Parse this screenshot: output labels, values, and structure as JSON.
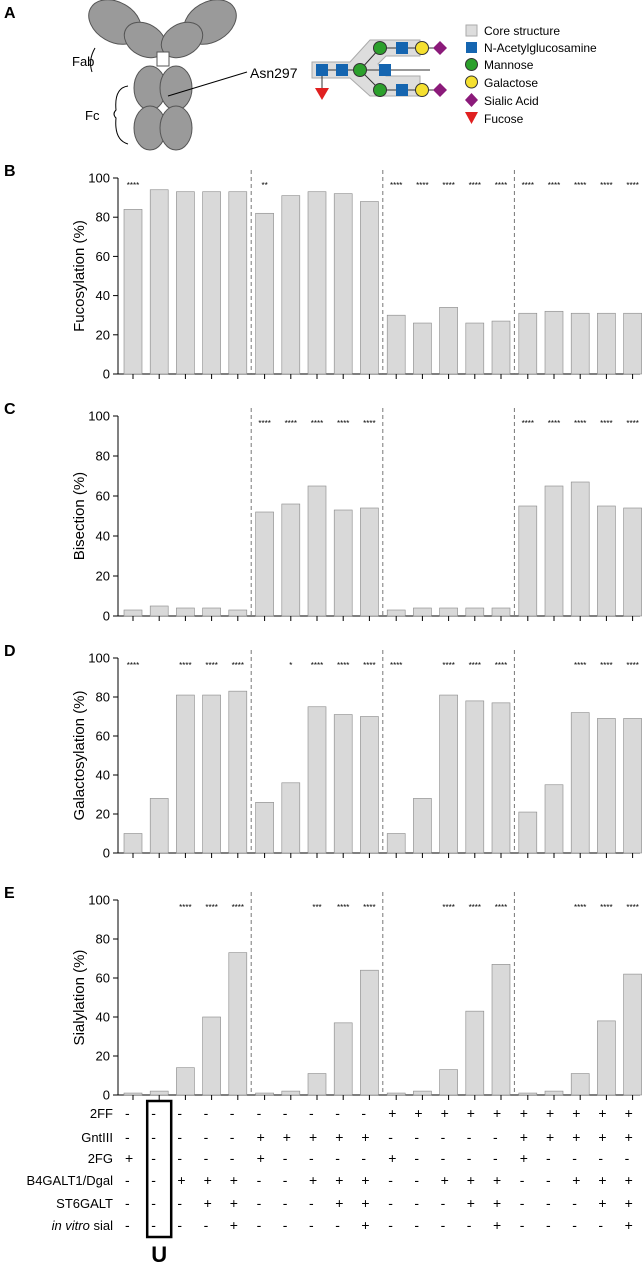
{
  "diagram": {
    "label": "A",
    "fab": "Fab",
    "fc": "Fc",
    "site": "Asn297",
    "legend": [
      "Core structure",
      "N-Acetylglucosamine",
      "Mannose",
      "Galactose",
      "Sialic Acid",
      "Fucose"
    ]
  },
  "chart_data": [
    {
      "type": "bar",
      "label": "B",
      "ylabel": "Fucosylation (%)",
      "color": "#d9d9d9",
      "ylim": [
        0,
        100
      ],
      "yticks": [
        0,
        20,
        40,
        60,
        80,
        100
      ],
      "values": [
        84,
        94,
        93,
        93,
        93,
        82,
        91,
        93,
        92,
        88,
        30,
        26,
        34,
        26,
        27,
        31,
        32,
        31,
        31,
        31
      ],
      "significance": [
        "****",
        null,
        null,
        null,
        null,
        "**",
        null,
        null,
        null,
        null,
        "****",
        "****",
        "****",
        "****",
        "****",
        "****",
        "****",
        "****",
        "****",
        "****"
      ]
    },
    {
      "type": "bar",
      "label": "C",
      "ylabel": "Bisection (%)",
      "color": "#d9d9d9",
      "ylim": [
        0,
        100
      ],
      "yticks": [
        0,
        20,
        40,
        60,
        80,
        100
      ],
      "values": [
        3,
        5,
        4,
        4,
        3,
        52,
        56,
        65,
        53,
        54,
        3,
        4,
        4,
        4,
        4,
        55,
        65,
        67,
        55,
        54
      ],
      "significance": [
        null,
        null,
        null,
        null,
        null,
        "****",
        "****",
        "****",
        "****",
        "****",
        null,
        null,
        null,
        null,
        null,
        "****",
        "****",
        "****",
        "****",
        "****"
      ]
    },
    {
      "type": "bar",
      "label": "D",
      "ylabel": "Galactosylation (%)",
      "color": "#d9d9d9",
      "ylim": [
        0,
        100
      ],
      "yticks": [
        0,
        20,
        40,
        60,
        80,
        100
      ],
      "values": [
        10,
        28,
        81,
        81,
        83,
        26,
        36,
        75,
        71,
        70,
        10,
        28,
        81,
        78,
        77,
        21,
        35,
        72,
        69,
        69
      ],
      "significance": [
        "****",
        null,
        "****",
        "****",
        "****",
        null,
        "*",
        "****",
        "****",
        "****",
        "****",
        null,
        "****",
        "****",
        "****",
        null,
        null,
        "****",
        "****",
        "****"
      ]
    },
    {
      "type": "bar",
      "label": "E",
      "ylabel": "Sialylation (%)",
      "color": "#d9d9d9",
      "ylim": [
        0,
        100
      ],
      "yticks": [
        0,
        20,
        40,
        60,
        80,
        100
      ],
      "values": [
        1,
        2,
        14,
        40,
        73,
        1,
        2,
        11,
        37,
        64,
        1,
        2,
        13,
        43,
        67,
        1,
        2,
        11,
        38,
        62
      ],
      "significance": [
        null,
        null,
        "****",
        "****",
        "****",
        null,
        null,
        "***",
        "****",
        "****",
        null,
        null,
        "****",
        "****",
        "****",
        null,
        null,
        "****",
        "****",
        "****"
      ]
    }
  ],
  "conditions": {
    "rows": [
      {
        "label": "2FF",
        "values": [
          "-",
          "-",
          "-",
          "-",
          "-",
          "-",
          "-",
          "-",
          "-",
          "-",
          "+",
          "+",
          "+",
          "+",
          "+",
          "+",
          "+",
          "+",
          "+",
          "+"
        ]
      },
      {
        "label": "GntIII",
        "values": [
          "-",
          "-",
          "-",
          "-",
          "-",
          "+",
          "+",
          "+",
          "+",
          "+",
          "-",
          "-",
          "-",
          "-",
          "-",
          "+",
          "+",
          "+",
          "+",
          "+"
        ]
      },
      {
        "label": "2FG",
        "values": [
          "+",
          "-",
          "-",
          "-",
          "-",
          "+",
          "-",
          "-",
          "-",
          "-",
          "+",
          "-",
          "-",
          "-",
          "-",
          "+",
          "-",
          "-",
          "-",
          "-"
        ]
      },
      {
        "label": "B4GALT1/Dgal",
        "values": [
          "-",
          "-",
          "+",
          "+",
          "+",
          "-",
          "-",
          "+",
          "+",
          "+",
          "-",
          "-",
          "+",
          "+",
          "+",
          "-",
          "-",
          "+",
          "+",
          "+"
        ]
      },
      {
        "label": "ST6GALT",
        "values": [
          "-",
          "-",
          "-",
          "+",
          "+",
          "-",
          "-",
          "-",
          "+",
          "+",
          "-",
          "-",
          "-",
          "+",
          "+",
          "-",
          "-",
          "-",
          "+",
          "+"
        ]
      },
      {
        "label": {
          "italic": "in vitro",
          "text": "sial"
        },
        "values": [
          "-",
          "-",
          "-",
          "-",
          "+",
          "-",
          "-",
          "-",
          "-",
          "+",
          "-",
          "-",
          "-",
          "-",
          "+",
          "-",
          "-",
          "-",
          "-",
          "+"
        ]
      }
    ],
    "highlight": "U"
  }
}
